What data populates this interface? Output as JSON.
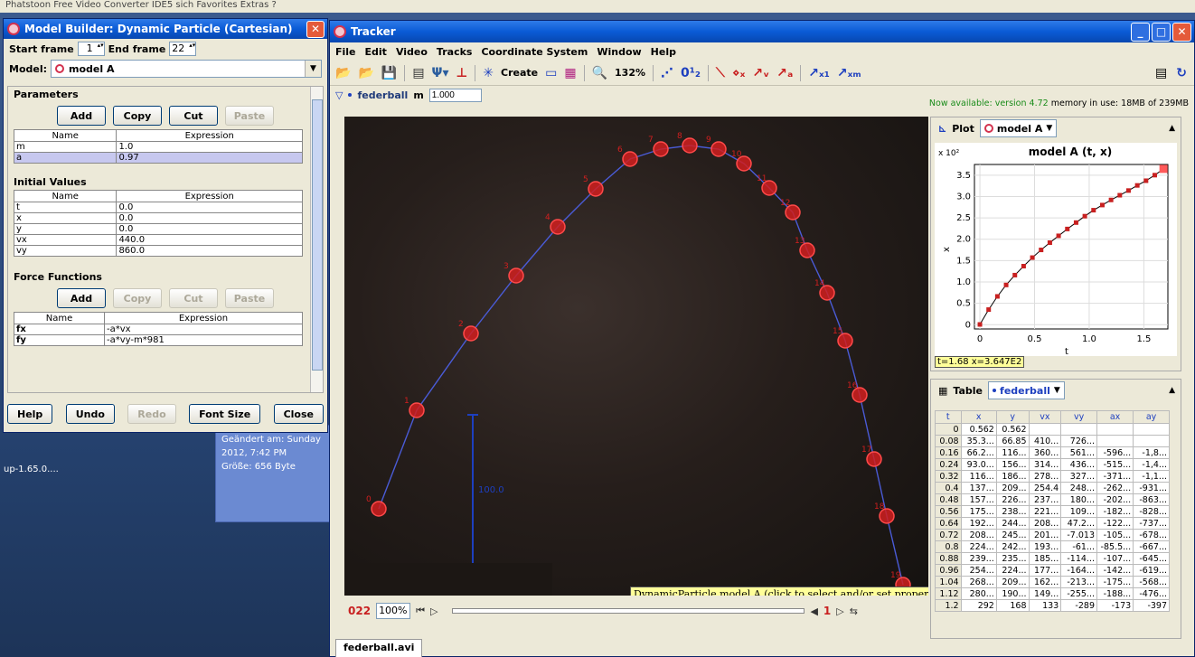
{
  "desktop": {
    "topstrip": "Phatstoon     Free Video Converter      IDE5          sich  Favorites   Extras  ?",
    "icon_label": "up-1.65.0....",
    "explorer_modified": "Geändert am: Sunday",
    "explorer_date": "2012, 7:42 PM",
    "explorer_size": "Größe: 656 Byte"
  },
  "builder": {
    "title": "Model Builder: Dynamic Particle (Cartesian)",
    "start_frame_label": "Start frame",
    "start_frame_value": "1",
    "end_frame_label": "End frame",
    "end_frame_value": "22",
    "model_label": "Model:",
    "model_value": "model A",
    "parameters_title": "Parameters",
    "param_buttons": [
      "Add",
      "Copy",
      "Cut",
      "Paste"
    ],
    "col_name": "Name",
    "col_expr": "Expression",
    "parameters": [
      {
        "name": "m",
        "expr": "1.0"
      },
      {
        "name": "a",
        "expr": "0.97"
      }
    ],
    "initial_title": "Initial Values",
    "initial_values": [
      {
        "name": "t",
        "expr": "0.0"
      },
      {
        "name": "x",
        "expr": "0.0"
      },
      {
        "name": "y",
        "expr": "0.0"
      },
      {
        "name": "vx",
        "expr": "440.0"
      },
      {
        "name": "vy",
        "expr": "860.0"
      }
    ],
    "force_title": "Force Functions",
    "force_buttons": [
      "Add",
      "Copy",
      "Cut",
      "Paste"
    ],
    "forces": [
      {
        "name": "fx",
        "expr": "-a*vx"
      },
      {
        "name": "fy",
        "expr": "-a*vy-m*981"
      }
    ],
    "bottom_buttons": [
      "Help",
      "Undo",
      "Redo",
      "Font Size",
      "Close"
    ]
  },
  "tracker": {
    "title": "Tracker",
    "menu": [
      "File",
      "Edit",
      "Video",
      "Tracks",
      "Coordinate System",
      "Window",
      "Help"
    ],
    "create_label": "Create",
    "zoom_label": "132%",
    "track_name": "federball",
    "mass_label": "m",
    "mass_value": "1.000",
    "status_available": "Now available: version 4.72",
    "status_memory": "memory in use: 18MB of 239MB",
    "tooltip": "DynamicParticle model A (click to select and/or set properties)",
    "calibration_value": "100.0",
    "frame_number": "022",
    "zoom_value": "100%",
    "step_number": "1",
    "file_tab": "federball.avi",
    "trajectory_point_labels": [
      "0",
      "1",
      "2",
      "3",
      "4",
      "5",
      "6",
      "7",
      "8",
      "9",
      "10",
      "11",
      "12",
      "13",
      "14",
      "15",
      "16",
      "17",
      "18",
      "19"
    ]
  },
  "plot": {
    "label": "Plot",
    "model": "model A",
    "title": "model A (t, x)",
    "multiplier": "x 10²",
    "xlabel": "t",
    "ylabel": "x",
    "readout": "t=1.68  x=3.647E2",
    "yticks": [
      "3.5",
      "3.0",
      "2.5",
      "2.0",
      "1.5",
      "1.0",
      "0.5",
      "0"
    ],
    "xticks": [
      "0",
      "0.5",
      "1.0",
      "1.5"
    ]
  },
  "chart_data": {
    "type": "scatter",
    "title": "model A (t, x)",
    "xlabel": "t",
    "ylabel": "x",
    "xlim": [
      -0.05,
      1.72
    ],
    "ylim": [
      -0.1,
      3.75
    ],
    "x": [
      0,
      0.08,
      0.16,
      0.24,
      0.32,
      0.4,
      0.48,
      0.56,
      0.64,
      0.72,
      0.8,
      0.88,
      0.96,
      1.04,
      1.12,
      1.2,
      1.28,
      1.36,
      1.44,
      1.52,
      1.6,
      1.68
    ],
    "y": [
      0.0056,
      0.353,
      0.662,
      0.93,
      1.16,
      1.37,
      1.57,
      1.75,
      1.92,
      2.08,
      2.24,
      2.39,
      2.54,
      2.68,
      2.8,
      2.92,
      3.03,
      3.14,
      3.26,
      3.37,
      3.5,
      3.647
    ],
    "series": [
      {
        "values_color": "#c82020"
      }
    ]
  },
  "table": {
    "label": "Table",
    "track": "federball",
    "columns": [
      "t",
      "x",
      "y",
      "vx",
      "vy",
      "ax",
      "ay"
    ],
    "rows": [
      [
        "0",
        "0.562",
        "0.562",
        "",
        "",
        "",
        ""
      ],
      [
        "0.08",
        "35.3...",
        "66.85",
        "410...",
        "726...",
        "",
        ""
      ],
      [
        "0.16",
        "66.2...",
        "116...",
        "360...",
        "561...",
        "-596...",
        "-1,8..."
      ],
      [
        "0.24",
        "93.0...",
        "156...",
        "314...",
        "436...",
        "-515...",
        "-1,4..."
      ],
      [
        "0.32",
        "116...",
        "186...",
        "278...",
        "327...",
        "-371...",
        "-1,1..."
      ],
      [
        "0.4",
        "137...",
        "209...",
        "254.4",
        "248...",
        "-262...",
        "-931..."
      ],
      [
        "0.48",
        "157...",
        "226...",
        "237...",
        "180...",
        "-202...",
        "-863..."
      ],
      [
        "0.56",
        "175...",
        "238...",
        "221...",
        "109...",
        "-182...",
        "-828..."
      ],
      [
        "0.64",
        "192...",
        "244...",
        "208...",
        "47.2...",
        "-122...",
        "-737..."
      ],
      [
        "0.72",
        "208...",
        "245...",
        "201...",
        "-7.013",
        "-105...",
        "-678..."
      ],
      [
        "0.8",
        "224...",
        "242...",
        "193...",
        "-61...",
        "-85.5...",
        "-667..."
      ],
      [
        "0.88",
        "239...",
        "235...",
        "185...",
        "-114...",
        "-107...",
        "-645..."
      ],
      [
        "0.96",
        "254...",
        "224...",
        "177...",
        "-164...",
        "-142...",
        "-619..."
      ],
      [
        "1.04",
        "268...",
        "209...",
        "162...",
        "-213...",
        "-175...",
        "-568..."
      ],
      [
        "1.12",
        "280...",
        "190...",
        "149...",
        "-255...",
        "-188...",
        "-476..."
      ],
      [
        "1.2",
        "292",
        "168",
        "133",
        "-289",
        "-173",
        "-397"
      ]
    ]
  },
  "colors": {
    "accent_red": "#c82020",
    "track_blue": "#1d3fbf",
    "xp_title": "#0a5bd6"
  }
}
